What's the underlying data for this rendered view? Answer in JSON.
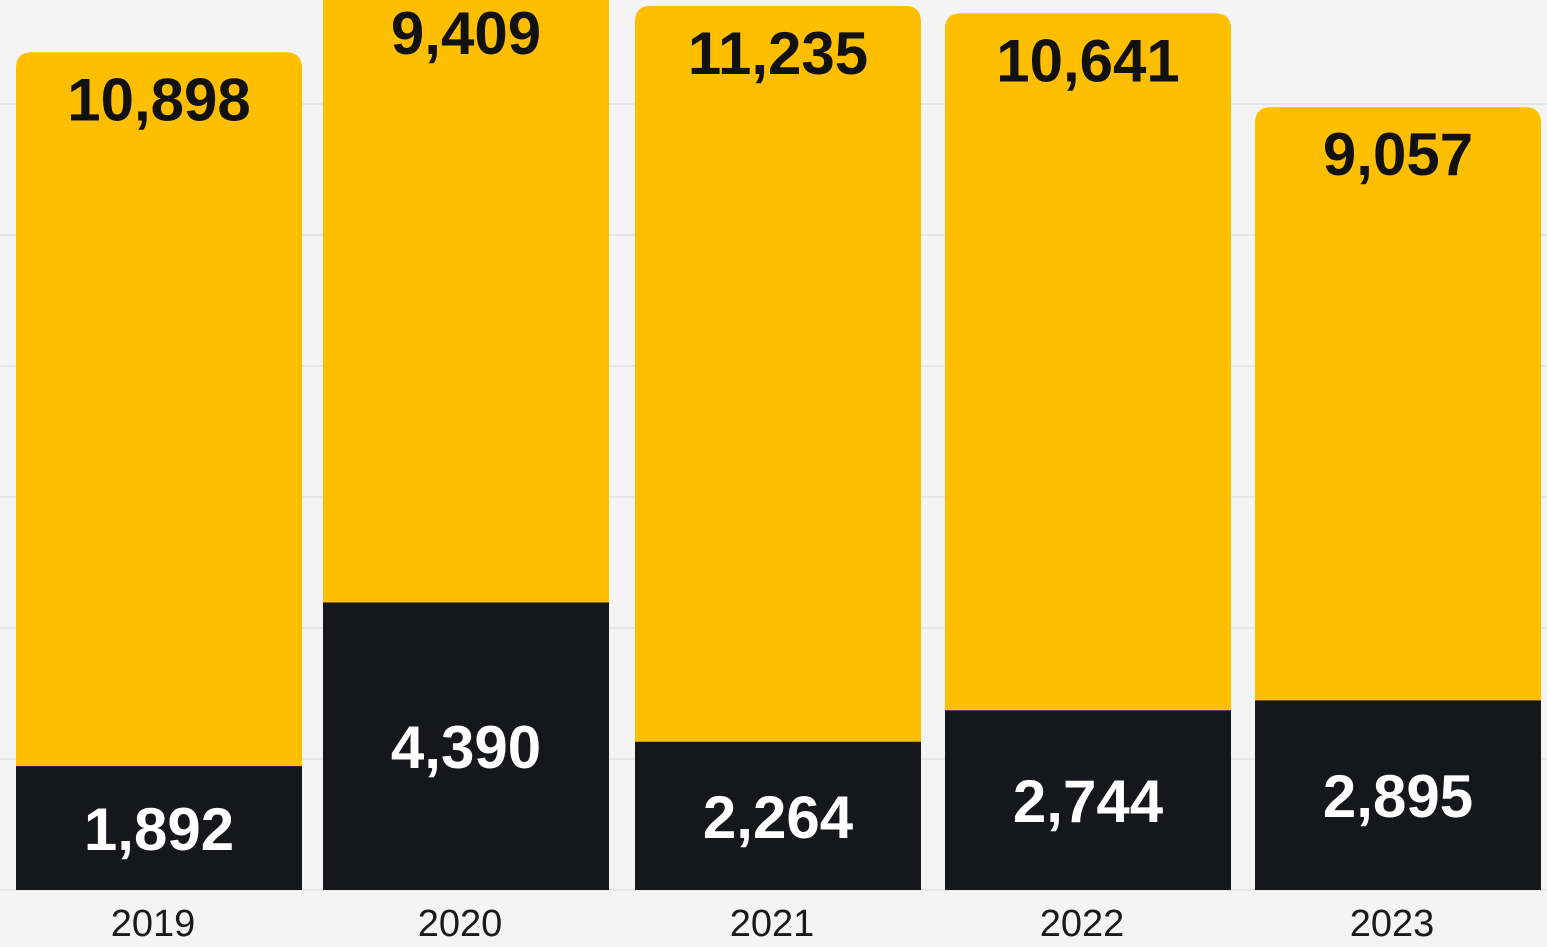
{
  "chart_data": {
    "type": "bar",
    "stacked": true,
    "categories": [
      "2019",
      "2020",
      "2021",
      "2022",
      "2023"
    ],
    "series": [
      {
        "values": [
          1892,
          4390,
          2264,
          2744,
          2895
        ],
        "color": "#16171a",
        "label_color": "#ffffff"
      },
      {
        "values": [
          10898,
          9409,
          11235,
          10641,
          9057
        ],
        "color": "#fdbf00",
        "label_color": "#111111"
      }
    ],
    "value_labels": {
      "bottom": [
        "1,892",
        "4,390",
        "2,264",
        "2,744",
        "2,895"
      ],
      "top": [
        "10,898",
        "9,409",
        "11,235",
        "10,641",
        "9,057"
      ]
    },
    "ylim": [
      0,
      14000
    ],
    "grid": true,
    "legend": "none",
    "colors": {
      "background": "#f4f4f4",
      "grid": "#e6e6e6",
      "tick": "#1a1a1a"
    }
  }
}
